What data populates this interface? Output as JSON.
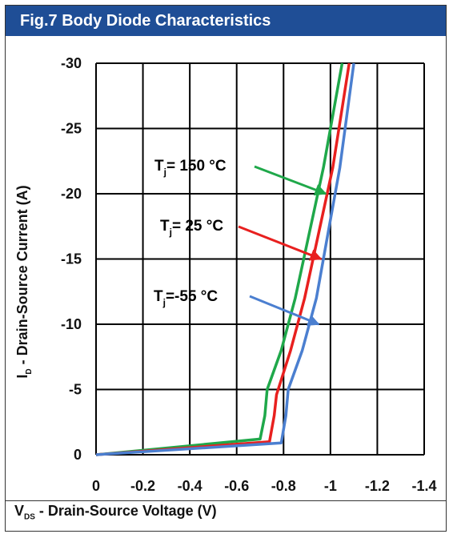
{
  "title": "Fig.7 Body Diode Characteristics",
  "colors": {
    "title_bg": "#1f4e96",
    "grid": "#000000",
    "series_150": "#1fa84a",
    "series_25": "#e8201f",
    "series_m55": "#4b7fd0"
  },
  "xlabel": {
    "main": "V",
    "sub": "DS",
    "rest": " - Drain-Source Voltage (V)"
  },
  "ylabel": {
    "main": "I",
    "sub": "D",
    "rest": " - Drain-Source Current (A)"
  },
  "chart_data": {
    "type": "line",
    "x_ticks": [
      "0",
      "-0.2",
      "-0.4",
      "-0.6",
      "-0.8",
      "-1",
      "-1.2",
      "-1.4"
    ],
    "y_ticks": [
      "0",
      "-5",
      "-10",
      "-15",
      "-20",
      "-25",
      "-30"
    ],
    "xlim": [
      0,
      -1.4
    ],
    "ylim": [
      0,
      -30
    ],
    "grid": true,
    "series": [
      {
        "name": "Tj=150 °C",
        "color_key": "series_150",
        "label_main": "T",
        "label_sub": "j",
        "label_rest": "= 150 °C",
        "points": [
          [
            0,
            0
          ],
          [
            -0.7,
            -1.2
          ],
          [
            -0.72,
            -3
          ],
          [
            -0.73,
            -5
          ],
          [
            -0.79,
            -8
          ],
          [
            -0.85,
            -12
          ],
          [
            -0.91,
            -17
          ],
          [
            -0.97,
            -22
          ],
          [
            -1.05,
            -30
          ]
        ],
        "arrow_to": [
          -0.98,
          -20
        ]
      },
      {
        "name": "Tj=25 °C",
        "color_key": "series_25",
        "label_main": "T",
        "label_sub": "j",
        "label_rest": "= 25 °C",
        "points": [
          [
            0,
            0
          ],
          [
            -0.74,
            -1
          ],
          [
            -0.76,
            -3
          ],
          [
            -0.77,
            -4.6
          ],
          [
            -0.83,
            -8
          ],
          [
            -0.89,
            -12
          ],
          [
            -0.95,
            -17
          ],
          [
            -1.01,
            -22
          ],
          [
            -1.08,
            -30
          ]
        ],
        "arrow_to": [
          -0.96,
          -15
        ]
      },
      {
        "name": "Tj=-55 °C",
        "color_key": "series_m55",
        "label_main": "T",
        "label_sub": "j",
        "label_rest": "=-55 °C",
        "points": [
          [
            0,
            0
          ],
          [
            -0.79,
            -0.9
          ],
          [
            -0.81,
            -3
          ],
          [
            -0.82,
            -5
          ],
          [
            -0.88,
            -8
          ],
          [
            -0.94,
            -12
          ],
          [
            -0.99,
            -17
          ],
          [
            -1.04,
            -22
          ],
          [
            -1.1,
            -30
          ]
        ],
        "arrow_to": [
          -0.95,
          -10
        ]
      }
    ]
  }
}
